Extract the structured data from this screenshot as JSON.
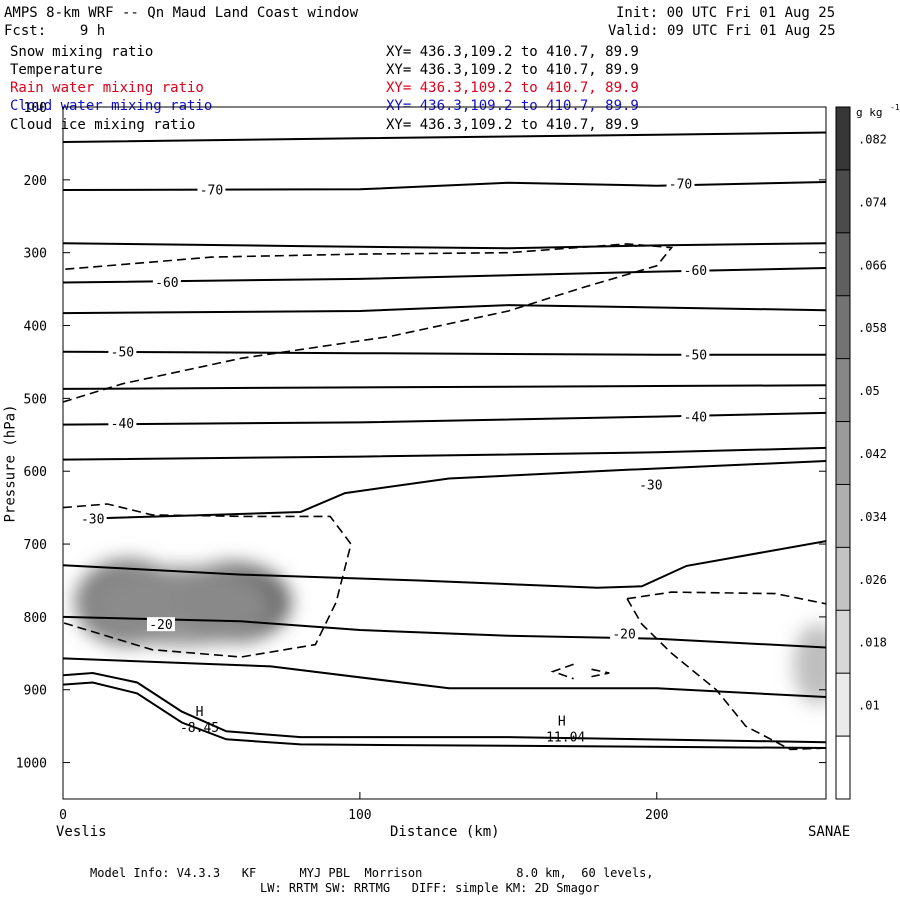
{
  "header": {
    "title": "AMPS 8-km WRF -- Qn Maud Land Coast window",
    "fcst": "Fcst:    9 h",
    "init": "Init: 00 UTC Fri 01 Aug 25",
    "valid": "Valid: 09 UTC Fri 01 Aug 25"
  },
  "fields": [
    {
      "name": "Snow mixing ratio",
      "xy": "XY= 436.3,109.2 to 410.7, 89.9",
      "color": "#000000"
    },
    {
      "name": "Temperature",
      "xy": "XY= 436.3,109.2 to 410.7, 89.9",
      "color": "#000000"
    },
    {
      "name": "Rain water mixing ratio",
      "xy": "XY= 436.3,109.2 to 410.7, 89.9",
      "color": "#e0001b"
    },
    {
      "name": "Cloud water mixing ratio",
      "xy": "XY= 436.3,109.2 to 410.7, 89.9",
      "color": "#1010d0"
    },
    {
      "name": "Cloud ice mixing ratio",
      "xy": "XY= 436.3,109.2 to 410.7, 89.9",
      "color": "#000000"
    }
  ],
  "footer": {
    "line1": "Model Info: V4.3.3   KF      MYJ PBL  Morrison             8.0 km,  60 levels,",
    "line2": "LW: RRTM SW: RRTMG   DIFF: simple KM: 2D Smagor"
  },
  "chart_data": {
    "type": "contour",
    "xlabel": "Distance (km)",
    "ylabel": "Pressure (hPa)",
    "xlim": [
      0,
      257
    ],
    "ylim": [
      1050,
      100
    ],
    "x_ticks": [
      0,
      100,
      200
    ],
    "y_ticks": [
      100,
      200,
      300,
      400,
      500,
      600,
      700,
      800,
      900,
      1000
    ],
    "left_endpoint": "Veslis",
    "right_endpoint": "SANAE",
    "colorbar": {
      "unit": "g kg",
      "unit_exp": "-1",
      "ticks": [
        ".01",
        ".018",
        ".026",
        ".034",
        ".042",
        ".05",
        ".058",
        ".066",
        ".074",
        ".082"
      ],
      "range": [
        0.006,
        0.09
      ]
    },
    "temperature_labels": [
      {
        "text": "-70",
        "x": 50,
        "p": 213
      },
      {
        "text": "-70",
        "x": 208,
        "p": 205
      },
      {
        "text": "-60",
        "x": 35,
        "p": 340
      },
      {
        "text": "-60",
        "x": 213,
        "p": 324
      },
      {
        "text": "-50",
        "x": 20,
        "p": 436
      },
      {
        "text": "-50",
        "x": 213,
        "p": 440
      },
      {
        "text": "-40",
        "x": 20,
        "p": 534
      },
      {
        "text": "-40",
        "x": 213,
        "p": 525
      },
      {
        "text": "-30",
        "x": 10,
        "p": 665
      },
      {
        "text": "-30",
        "x": 198,
        "p": 618
      },
      {
        "text": "-20",
        "x": 33,
        "p": 810
      },
      {
        "text": "-20",
        "x": 189,
        "p": 823
      }
    ],
    "highs": [
      {
        "label": "H",
        "value": "-8.45",
        "x": 46,
        "p": 940
      },
      {
        "label": "H",
        "value": "-11.04",
        "x": 168,
        "p": 953
      }
    ],
    "isotherms": [
      [
        [
          0,
          148
        ],
        [
          100,
          143
        ],
        [
          200,
          138
        ],
        [
          257,
          135
        ]
      ],
      [
        [
          0,
          214
        ],
        [
          100,
          213
        ],
        [
          150,
          204
        ],
        [
          200,
          208
        ],
        [
          257,
          203
        ]
      ],
      [
        [
          0,
          287
        ],
        [
          80,
          291
        ],
        [
          150,
          294
        ],
        [
          200,
          290
        ],
        [
          257,
          287
        ]
      ],
      [
        [
          0,
          341
        ],
        [
          100,
          336
        ],
        [
          200,
          326
        ],
        [
          257,
          321
        ]
      ],
      [
        [
          0,
          383
        ],
        [
          100,
          380
        ],
        [
          150,
          372
        ],
        [
          257,
          379
        ]
      ],
      [
        [
          0,
          436
        ],
        [
          100,
          438
        ],
        [
          200,
          440
        ],
        [
          257,
          440
        ]
      ],
      [
        [
          0,
          487
        ],
        [
          100,
          485
        ],
        [
          200,
          483
        ],
        [
          257,
          482
        ]
      ],
      [
        [
          0,
          536
        ],
        [
          100,
          533
        ],
        [
          200,
          525
        ],
        [
          257,
          520
        ]
      ],
      [
        [
          0,
          584
        ],
        [
          100,
          580
        ],
        [
          200,
          574
        ],
        [
          257,
          568
        ]
      ],
      [
        [
          8,
          665
        ],
        [
          50,
          660
        ],
        [
          80,
          656
        ],
        [
          95,
          630
        ],
        [
          130,
          610
        ],
        [
          190,
          598
        ],
        [
          257,
          586
        ]
      ],
      [
        [
          0,
          729
        ],
        [
          60,
          742
        ],
        [
          120,
          750
        ],
        [
          180,
          760
        ],
        [
          195,
          758
        ],
        [
          210,
          730
        ],
        [
          257,
          696
        ]
      ],
      [
        [
          0,
          800
        ],
        [
          60,
          806
        ],
        [
          100,
          818
        ],
        [
          150,
          826
        ],
        [
          200,
          830
        ],
        [
          257,
          842
        ]
      ],
      [
        [
          0,
          857
        ],
        [
          70,
          868
        ],
        [
          130,
          898
        ],
        [
          200,
          898
        ],
        [
          257,
          910
        ]
      ],
      [
        [
          0,
          880
        ],
        [
          10,
          877
        ],
        [
          25,
          890
        ],
        [
          40,
          930
        ],
        [
          55,
          957
        ],
        [
          80,
          965
        ],
        [
          150,
          965
        ],
        [
          257,
          972
        ]
      ],
      [
        [
          0,
          893
        ],
        [
          10,
          890
        ],
        [
          25,
          905
        ],
        [
          40,
          945
        ],
        [
          55,
          968
        ],
        [
          80,
          975
        ],
        [
          150,
          977
        ],
        [
          257,
          980
        ]
      ]
    ],
    "cloud_ice_contours": [
      [
        [
          0,
          505
        ],
        [
          20,
          480
        ],
        [
          60,
          445
        ],
        [
          110,
          415
        ],
        [
          150,
          380
        ],
        [
          175,
          348
        ],
        [
          200,
          318
        ],
        [
          205,
          293
        ],
        [
          190,
          288
        ],
        [
          150,
          300
        ],
        [
          100,
          302
        ],
        [
          50,
          306
        ],
        [
          0,
          323
        ]
      ],
      [
        [
          0,
          650
        ],
        [
          15,
          645
        ],
        [
          30,
          660
        ],
        [
          60,
          662
        ],
        [
          90,
          662
        ],
        [
          97,
          700
        ],
        [
          92,
          780
        ],
        [
          85,
          838
        ],
        [
          60,
          855
        ],
        [
          30,
          845
        ],
        [
          0,
          808
        ]
      ],
      [
        [
          190,
          775
        ],
        [
          205,
          766
        ],
        [
          240,
          768
        ],
        [
          257,
          782
        ]
      ],
      [
        [
          190,
          775
        ],
        [
          195,
          810
        ],
        [
          205,
          850
        ],
        [
          220,
          900
        ],
        [
          230,
          950
        ],
        [
          245,
          982
        ],
        [
          257,
          980
        ]
      ],
      [
        [
          172,
          865
        ],
        [
          165,
          875
        ],
        [
          172,
          885
        ]
      ],
      [
        [
          178,
          872
        ],
        [
          184,
          877
        ],
        [
          178,
          882
        ]
      ]
    ],
    "shading_blobs": [
      {
        "x": 22,
        "p": 780,
        "rx": 18,
        "rp": 60,
        "value": 0.062
      },
      {
        "x": 57,
        "p": 780,
        "rx": 20,
        "rp": 55,
        "value": 0.074
      },
      {
        "x": 40,
        "p": 785,
        "rx": 30,
        "rp": 55,
        "value": 0.05
      },
      {
        "x": 254,
        "p": 865,
        "rx": 8,
        "rp": 55,
        "value": 0.03
      }
    ]
  }
}
